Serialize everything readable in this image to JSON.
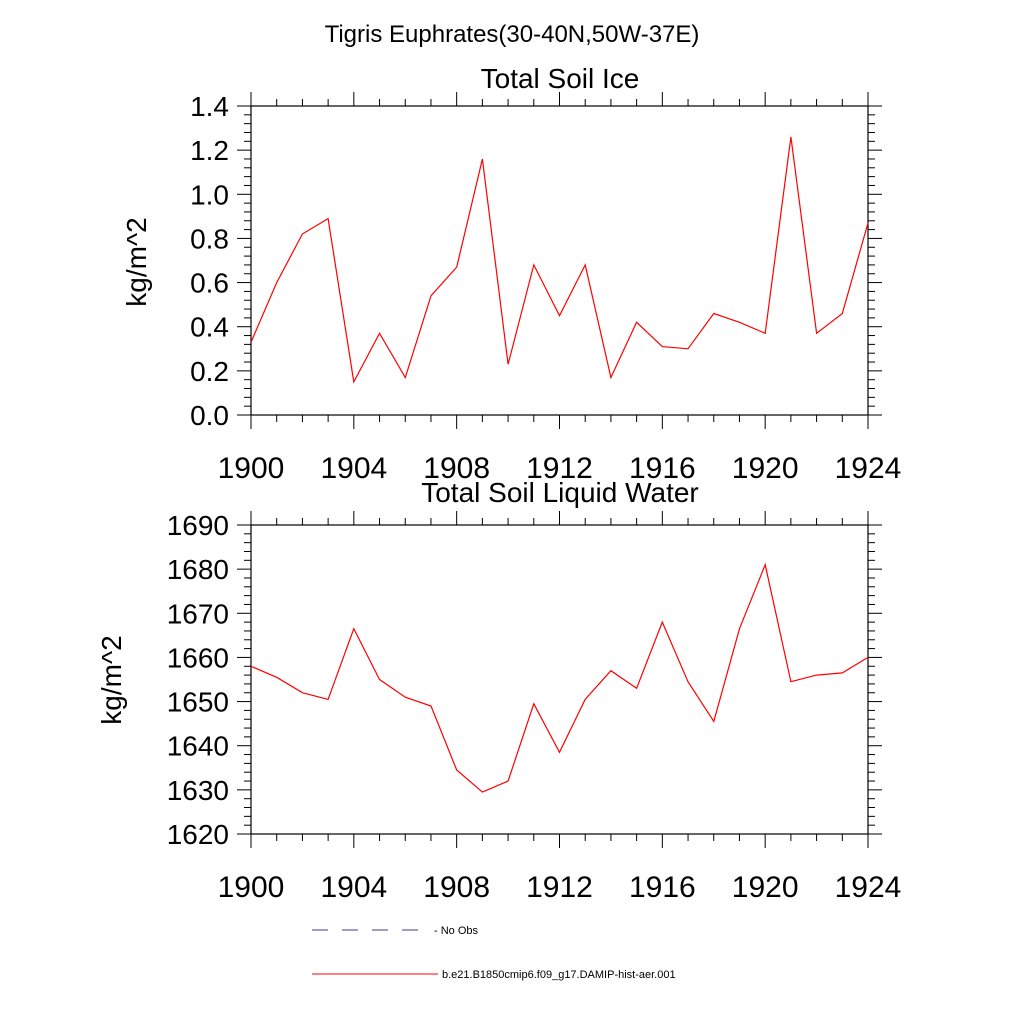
{
  "figure_title": "Tigris Euphrates(30-40N,50W-37E)",
  "legend": {
    "items": [
      {
        "label": "- No Obs",
        "color": "#3b3b8f",
        "style": "dashed"
      },
      {
        "label": "b.e21.B1850cmip6.f09_g17.DAMIP-hist-aer.001",
        "color": "#ff0000",
        "style": "solid"
      }
    ]
  },
  "chart_data": [
    {
      "type": "line",
      "title": "Total Soil Ice",
      "xlabel": "",
      "ylabel": "kg/m^2",
      "xlim": [
        1900,
        1924
      ],
      "ylim": [
        0.0,
        1.4
      ],
      "xticks": [
        1900,
        1904,
        1908,
        1912,
        1916,
        1920,
        1924
      ],
      "xtick_labels": [
        "1900",
        "1904",
        "1908",
        "1912",
        "1916",
        "1920",
        "1924"
      ],
      "yticks": [
        0.0,
        0.2,
        0.4,
        0.6,
        0.8,
        1.0,
        1.2,
        1.4
      ],
      "ytick_labels": [
        "0.0",
        "0.2",
        "0.4",
        "0.6",
        "0.8",
        "1.0",
        "1.2",
        "1.4"
      ],
      "x": [
        1900,
        1901,
        1902,
        1903,
        1904,
        1905,
        1906,
        1907,
        1908,
        1909,
        1910,
        1911,
        1912,
        1913,
        1914,
        1915,
        1916,
        1917,
        1918,
        1919,
        1920,
        1921,
        1922,
        1923,
        1924
      ],
      "series": [
        {
          "name": "b.e21.B1850cmip6.f09_g17.DAMIP-hist-aer.001",
          "color": "#ff0000",
          "values": [
            0.33,
            0.6,
            0.82,
            0.89,
            0.15,
            0.37,
            0.17,
            0.54,
            0.67,
            1.16,
            0.23,
            0.68,
            0.45,
            0.68,
            0.17,
            0.42,
            0.31,
            0.3,
            0.46,
            0.42,
            0.37,
            1.26,
            0.37,
            0.46,
            0.87
          ]
        }
      ]
    },
    {
      "type": "line",
      "title": "Total Soil Liquid Water",
      "xlabel": "",
      "ylabel": "kg/m^2",
      "xlim": [
        1900,
        1924
      ],
      "ylim": [
        1620,
        1690
      ],
      "xticks": [
        1900,
        1904,
        1908,
        1912,
        1916,
        1920,
        1924
      ],
      "xtick_labels": [
        "1900",
        "1904",
        "1908",
        "1912",
        "1916",
        "1920",
        "1924"
      ],
      "yticks": [
        1620,
        1630,
        1640,
        1650,
        1660,
        1670,
        1680,
        1690
      ],
      "ytick_labels": [
        "1620",
        "1630",
        "1640",
        "1650",
        "1660",
        "1670",
        "1680",
        "1690"
      ],
      "x": [
        1900,
        1901,
        1902,
        1903,
        1904,
        1905,
        1906,
        1907,
        1908,
        1909,
        1910,
        1911,
        1912,
        1913,
        1914,
        1915,
        1916,
        1917,
        1918,
        1919,
        1920,
        1921,
        1922,
        1923,
        1924
      ],
      "series": [
        {
          "name": "b.e21.B1850cmip6.f09_g17.DAMIP-hist-aer.001",
          "color": "#ff0000",
          "values": [
            1658,
            1655.5,
            1652,
            1650.5,
            1666.5,
            1655,
            1651,
            1649,
            1634.5,
            1629.5,
            1632,
            1649.5,
            1638.5,
            1650.5,
            1657,
            1653,
            1668,
            1654.5,
            1645.5,
            1666.5,
            1681,
            1654.5,
            1656,
            1656.5,
            1660
          ]
        }
      ]
    }
  ]
}
